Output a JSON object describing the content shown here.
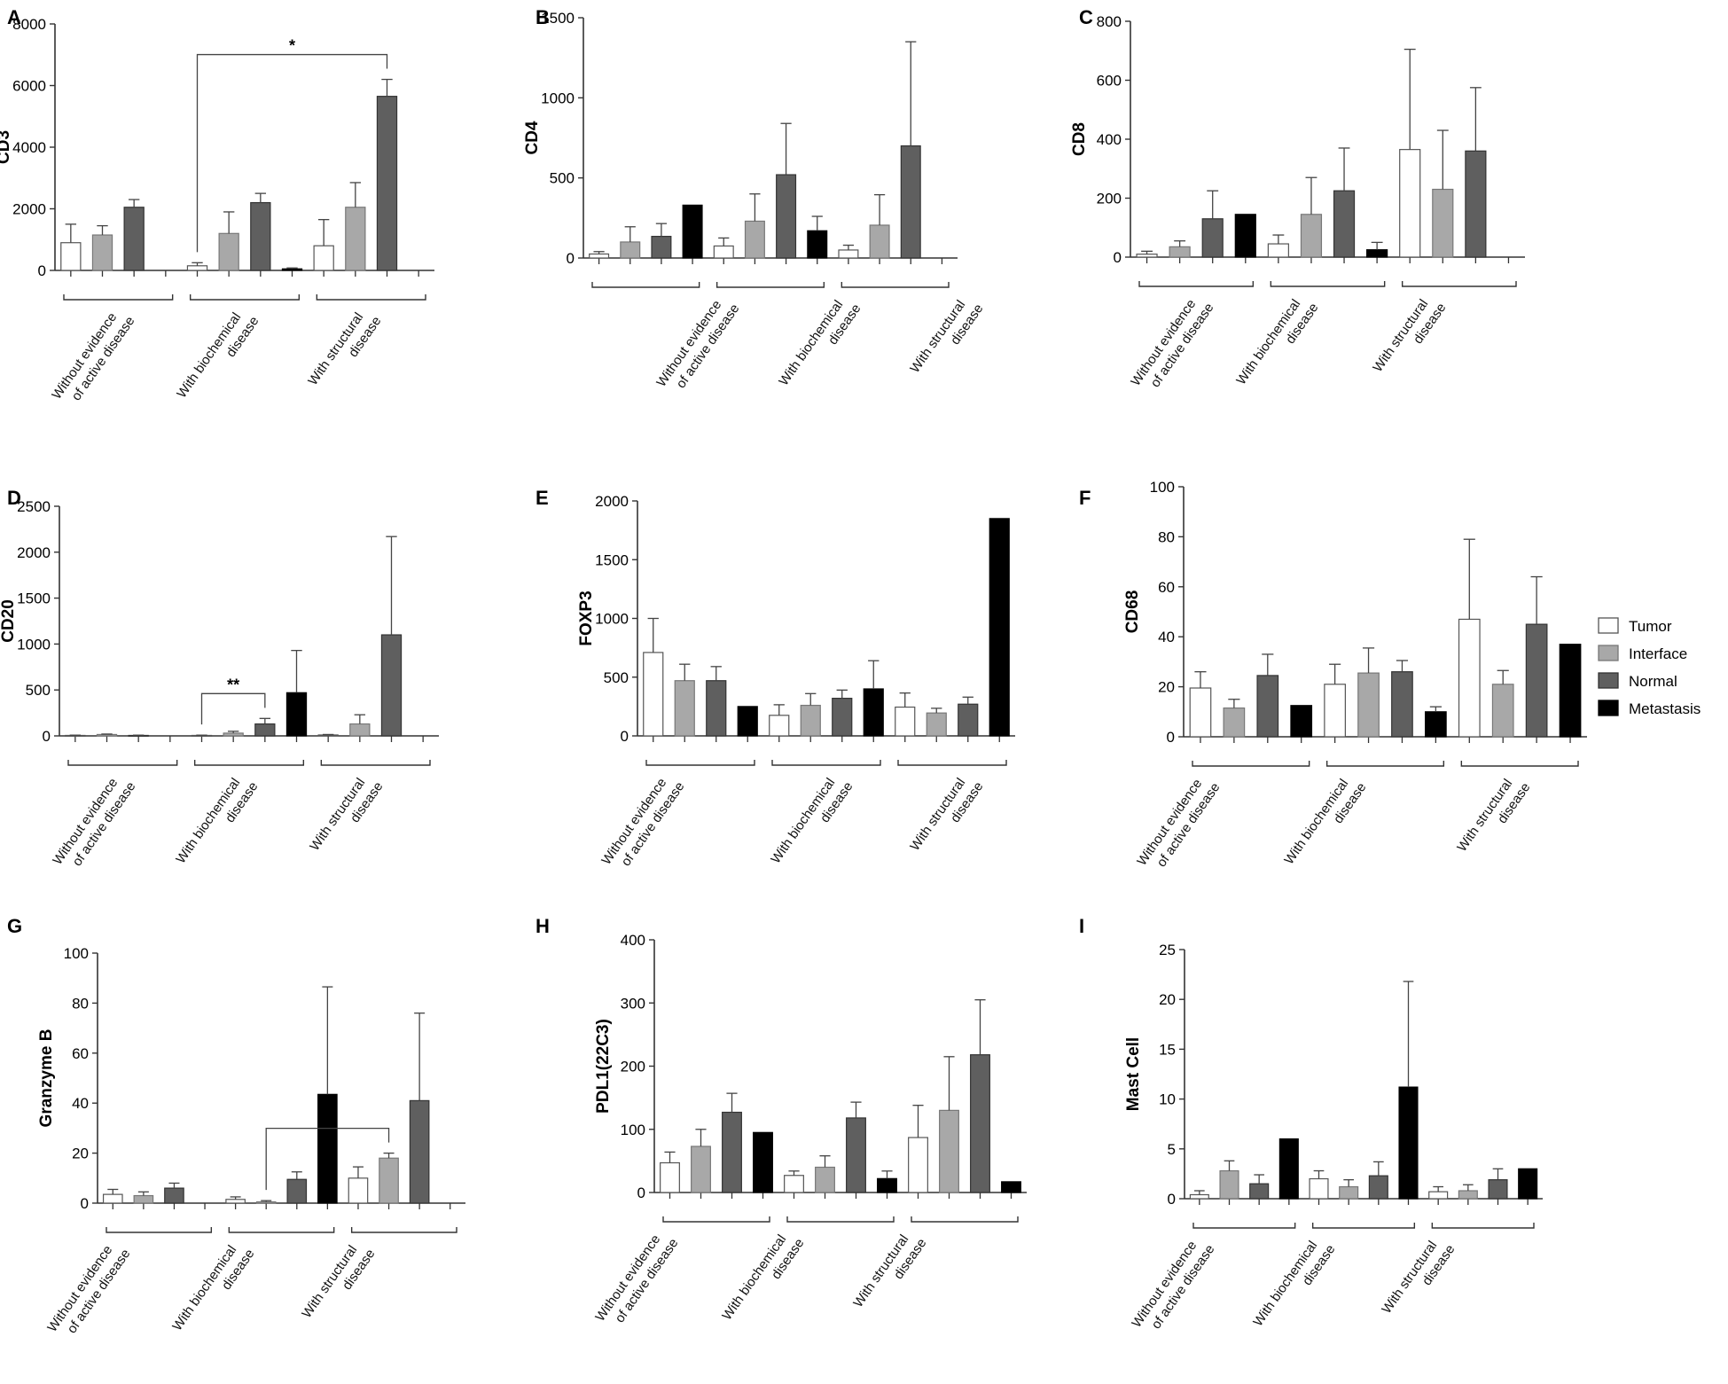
{
  "legend": {
    "entries": [
      {
        "name": "Tumor",
        "color": "#ffffff"
      },
      {
        "name": "Interface",
        "color": "#a8a8a8"
      },
      {
        "name": "Normal",
        "color": "#5f5f5f"
      },
      {
        "name": "Metastasis",
        "color": "#000000"
      }
    ]
  },
  "chart_data": [
    {
      "type": "bar",
      "panel": "A",
      "ylabel": "CD3",
      "ylim": [
        0,
        8000
      ],
      "yticks": [
        0,
        2000,
        4000,
        6000,
        8000
      ],
      "categories": [
        [
          "Without evidence",
          "of active disease"
        ],
        [
          "With biochemical",
          "disease"
        ],
        [
          "With structural",
          "disease"
        ]
      ],
      "series": [
        {
          "name": "Tumor",
          "values": [
            900,
            150,
            800
          ],
          "errors": [
            600,
            100,
            850
          ]
        },
        {
          "name": "Interface",
          "values": [
            1150,
            1200,
            2050
          ],
          "errors": [
            300,
            700,
            800
          ]
        },
        {
          "name": "Normal",
          "values": [
            2050,
            2200,
            5650
          ],
          "errors": [
            250,
            300,
            550
          ]
        },
        {
          "name": "Metastasis",
          "values": [
            null,
            50,
            null
          ],
          "errors": [
            null,
            30,
            null
          ]
        }
      ],
      "significance": [
        {
          "label": "*",
          "from": [
            1,
            0
          ],
          "to": [
            2,
            2
          ]
        }
      ]
    },
    {
      "type": "bar",
      "panel": "B",
      "ylabel": "CD4",
      "ylim": [
        0,
        1500
      ],
      "yticks": [
        0,
        500,
        1000,
        1500
      ],
      "categories": [
        [
          "Without evidence",
          "of active disease"
        ],
        [
          "With biochemical",
          "disease"
        ],
        [
          "With structural",
          "disease"
        ]
      ],
      "series": [
        {
          "name": "Tumor",
          "values": [
            25,
            75,
            50
          ],
          "errors": [
            15,
            50,
            30
          ]
        },
        {
          "name": "Interface",
          "values": [
            100,
            230,
            205
          ],
          "errors": [
            95,
            170,
            190
          ]
        },
        {
          "name": "Normal",
          "values": [
            135,
            520,
            700
          ],
          "errors": [
            80,
            320,
            650
          ]
        },
        {
          "name": "Metastasis",
          "values": [
            330,
            170,
            null
          ],
          "errors": [
            null,
            90,
            null
          ]
        }
      ],
      "significance": []
    },
    {
      "type": "bar",
      "panel": "C",
      "ylabel": "CD8",
      "ylim": [
        0,
        800
      ],
      "yticks": [
        0,
        200,
        400,
        600,
        800
      ],
      "categories": [
        [
          "Without evidence",
          "of active disease"
        ],
        [
          "With biochemical",
          "disease"
        ],
        [
          "With structural",
          "disease"
        ]
      ],
      "series": [
        {
          "name": "Tumor",
          "values": [
            10,
            45,
            365
          ],
          "errors": [
            10,
            30,
            340
          ]
        },
        {
          "name": "Interface",
          "values": [
            35,
            145,
            230
          ],
          "errors": [
            20,
            125,
            200
          ]
        },
        {
          "name": "Normal",
          "values": [
            130,
            225,
            360
          ],
          "errors": [
            95,
            145,
            215
          ]
        },
        {
          "name": "Metastasis",
          "values": [
            145,
            25,
            null
          ],
          "errors": [
            null,
            25,
            null
          ]
        }
      ],
      "significance": []
    },
    {
      "type": "bar",
      "panel": "D",
      "ylabel": "CD20",
      "ylim": [
        0,
        2500
      ],
      "yticks": [
        0,
        500,
        1000,
        1500,
        2000,
        2500
      ],
      "categories": [
        [
          "Without evidence",
          "of active disease"
        ],
        [
          "With biochemical",
          "disease"
        ],
        [
          "With structural",
          "disease"
        ]
      ],
      "series": [
        {
          "name": "Tumor",
          "values": [
            5,
            5,
            10
          ],
          "errors": [
            3,
            3,
            5
          ]
        },
        {
          "name": "Interface",
          "values": [
            15,
            30,
            130
          ],
          "errors": [
            5,
            20,
            100
          ]
        },
        {
          "name": "Normal",
          "values": [
            5,
            130,
            1100
          ],
          "errors": [
            3,
            60,
            1070
          ]
        },
        {
          "name": "Metastasis",
          "values": [
            null,
            470,
            null
          ],
          "errors": [
            null,
            460,
            null
          ]
        }
      ],
      "significance": [
        {
          "label": "**",
          "from": [
            1,
            0
          ],
          "to": [
            1,
            2
          ]
        }
      ]
    },
    {
      "type": "bar",
      "panel": "E",
      "ylabel": "FOXP3",
      "ylim": [
        0,
        2000
      ],
      "yticks": [
        0,
        500,
        1000,
        1500,
        2000
      ],
      "categories": [
        [
          "Without evidence",
          "of active disease"
        ],
        [
          "With biochemical",
          "disease"
        ],
        [
          "With structural",
          "disease"
        ]
      ],
      "series": [
        {
          "name": "Tumor",
          "values": [
            710,
            175,
            245
          ],
          "errors": [
            290,
            90,
            120
          ]
        },
        {
          "name": "Interface",
          "values": [
            470,
            260,
            195
          ],
          "errors": [
            140,
            100,
            40
          ]
        },
        {
          "name": "Normal",
          "values": [
            470,
            320,
            270
          ],
          "errors": [
            120,
            70,
            60
          ]
        },
        {
          "name": "Metastasis",
          "values": [
            250,
            400,
            1850
          ],
          "errors": [
            null,
            240,
            null
          ]
        }
      ],
      "significance": []
    },
    {
      "type": "bar",
      "panel": "F",
      "ylabel": "CD68",
      "ylim": [
        0,
        100
      ],
      "yticks": [
        0,
        20,
        40,
        60,
        80,
        100
      ],
      "categories": [
        [
          "Without evidence",
          "of active disease"
        ],
        [
          "With biochemical",
          "disease"
        ],
        [
          "With structural",
          "disease"
        ]
      ],
      "series": [
        {
          "name": "Tumor",
          "values": [
            19.5,
            21,
            47
          ],
          "errors": [
            6.5,
            8,
            32
          ]
        },
        {
          "name": "Interface",
          "values": [
            11.5,
            25.5,
            21
          ],
          "errors": [
            3.5,
            10,
            5.5
          ]
        },
        {
          "name": "Normal",
          "values": [
            24.5,
            26,
            45
          ],
          "errors": [
            8.5,
            4.5,
            19
          ]
        },
        {
          "name": "Metastasis",
          "values": [
            12.5,
            10,
            37
          ],
          "errors": [
            null,
            2,
            null
          ]
        }
      ],
      "significance": []
    },
    {
      "type": "bar",
      "panel": "G",
      "ylabel": "Granzyme B",
      "ylim": [
        0,
        100
      ],
      "yticks": [
        0,
        20,
        40,
        60,
        80,
        100
      ],
      "categories": [
        [
          "Without evidence",
          "of active disease"
        ],
        [
          "With biochemical",
          "disease"
        ],
        [
          "With structural",
          "disease"
        ]
      ],
      "series": [
        {
          "name": "Tumor",
          "values": [
            3.5,
            1.5,
            10
          ],
          "errors": [
            2,
            1,
            4.5
          ]
        },
        {
          "name": "Interface",
          "values": [
            3,
            0.5,
            18
          ],
          "errors": [
            1.5,
            0.5,
            2
          ]
        },
        {
          "name": "Normal",
          "values": [
            6,
            9.5,
            41
          ],
          "errors": [
            2,
            3,
            35
          ]
        },
        {
          "name": "Metastasis",
          "values": [
            null,
            43.5,
            null
          ],
          "errors": [
            null,
            43,
            null
          ]
        }
      ],
      "significance": [
        {
          "label": "*",
          "from": [
            1,
            1
          ],
          "to": [
            2,
            1
          ]
        }
      ]
    },
    {
      "type": "bar",
      "panel": "H",
      "ylabel": "PDL1(22C3)",
      "ylim": [
        0,
        400
      ],
      "yticks": [
        0,
        100,
        200,
        300,
        400
      ],
      "categories": [
        [
          "Without evidence",
          "of active disease"
        ],
        [
          "With biochemical",
          "disease"
        ],
        [
          "With structural",
          "disease"
        ]
      ],
      "series": [
        {
          "name": "Tumor",
          "values": [
            47,
            27,
            87
          ],
          "errors": [
            17,
            7,
            51
          ]
        },
        {
          "name": "Interface",
          "values": [
            73,
            40,
            130
          ],
          "errors": [
            27,
            18,
            85
          ]
        },
        {
          "name": "Normal",
          "values": [
            127,
            118,
            218
          ],
          "errors": [
            30,
            25,
            87
          ]
        },
        {
          "name": "Metastasis",
          "values": [
            95,
            22,
            17
          ],
          "errors": [
            null,
            12,
            null
          ]
        }
      ],
      "significance": []
    },
    {
      "type": "bar",
      "panel": "I",
      "ylabel": "Mast Cell",
      "ylim": [
        0,
        25
      ],
      "yticks": [
        0,
        5,
        10,
        15,
        20,
        25
      ],
      "categories": [
        [
          "Without evidence",
          "of active disease"
        ],
        [
          "With biochemical",
          "disease"
        ],
        [
          "With structural",
          "disease"
        ]
      ],
      "series": [
        {
          "name": "Tumor",
          "values": [
            0.4,
            2,
            0.7
          ],
          "errors": [
            0.4,
            0.8,
            0.5
          ]
        },
        {
          "name": "Interface",
          "values": [
            2.8,
            1.2,
            0.8
          ],
          "errors": [
            1,
            0.7,
            0.6
          ]
        },
        {
          "name": "Normal",
          "values": [
            1.5,
            2.3,
            1.9
          ],
          "errors": [
            0.9,
            1.4,
            1.1
          ]
        },
        {
          "name": "Metastasis",
          "values": [
            6,
            11.2,
            3
          ],
          "errors": [
            null,
            10.6,
            null
          ]
        }
      ],
      "significance": []
    }
  ]
}
